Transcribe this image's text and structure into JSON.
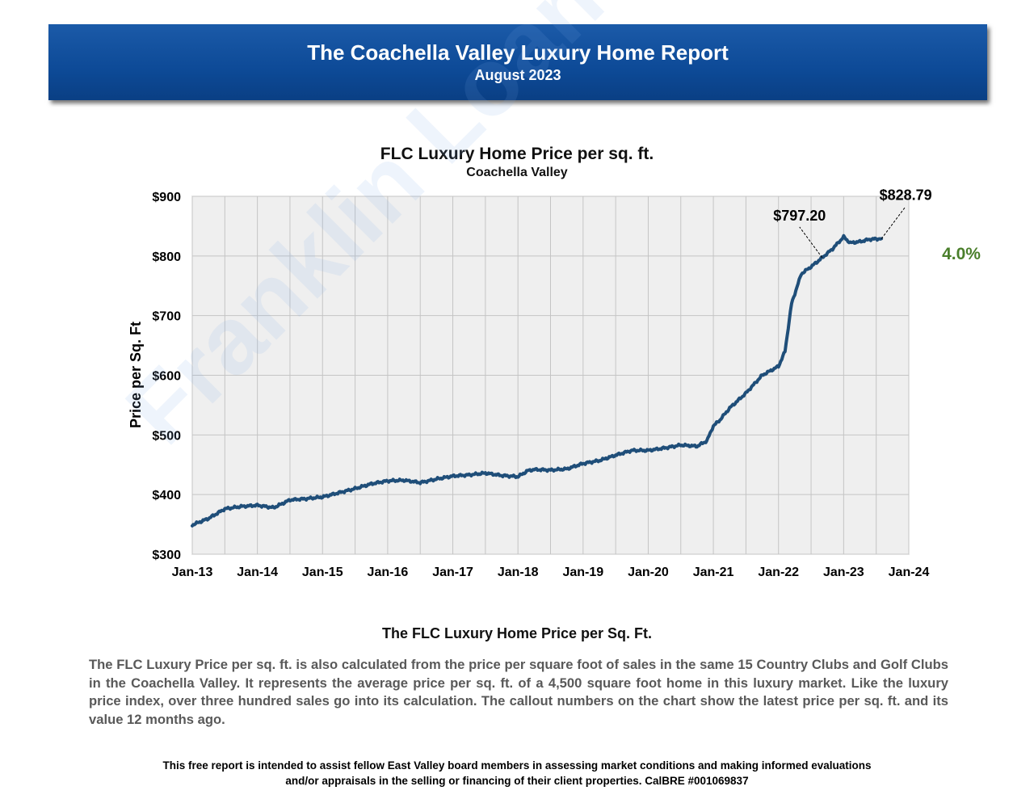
{
  "header": {
    "title": "The Coachella Valley Luxury Home Report",
    "subtitle": "August 2023"
  },
  "watermark": "Franklin Loan Center",
  "chart_data": {
    "type": "line",
    "title": "FLC Luxury Home Price per sq. ft.",
    "subtitle": "Coachella Valley",
    "xlabel": "",
    "ylabel": "Price per Sq. Ft",
    "ylim": [
      300,
      900
    ],
    "yticks": [
      300,
      400,
      500,
      600,
      700,
      800,
      900
    ],
    "ytick_labels": [
      "$300",
      "$400",
      "$500",
      "$600",
      "$700",
      "$800",
      "$900"
    ],
    "xticks": [
      "Jan-13",
      "Jan-14",
      "Jan-15",
      "Jan-16",
      "Jan-17",
      "Jan-18",
      "Jan-19",
      "Jan-20",
      "Jan-21",
      "Jan-22",
      "Jan-23",
      "Jan-24"
    ],
    "grid": true,
    "line_color": "#1f4e79",
    "series": [
      {
        "values_note_x": "year fraction",
        "x": [
          2013.0,
          2013.25,
          2013.5,
          2013.75,
          2014.0,
          2014.25,
          2014.5,
          2014.75,
          2015.0,
          2015.25,
          2015.5,
          2015.75,
          2016.0,
          2016.25,
          2016.5,
          2016.75,
          2017.0,
          2017.25,
          2017.5,
          2017.75,
          2018.0,
          2018.15,
          2018.25,
          2018.5,
          2018.75,
          2019.0,
          2019.25,
          2019.5,
          2019.75,
          2020.0,
          2020.25,
          2020.5,
          2020.75,
          2020.9,
          2021.0,
          2021.1,
          2021.25,
          2021.5,
          2021.75,
          2022.0,
          2022.1,
          2022.2,
          2022.35,
          2022.5,
          2022.67,
          2022.83,
          2023.0,
          2023.1,
          2023.25,
          2023.4,
          2023.58
        ],
        "y": [
          349,
          360,
          376,
          380,
          382,
          378,
          391,
          393,
          396,
          403,
          410,
          418,
          423,
          424,
          420,
          426,
          431,
          433,
          436,
          432,
          430,
          440,
          442,
          441,
          443,
          452,
          457,
          466,
          474,
          474,
          478,
          483,
          481,
          490,
          515,
          525,
          545,
          570,
          600,
          615,
          640,
          720,
          770,
          782,
          797,
          812,
          832,
          822,
          824,
          828,
          829
        ]
      }
    ],
    "callouts": [
      {
        "label": "$797.20",
        "x": 2022.67,
        "y": 797.2
      },
      {
        "label": "$828.79",
        "x": 2023.58,
        "y": 828.79
      }
    ],
    "change_label": "4.0%"
  },
  "section": {
    "title": "The FLC Luxury Home Price per Sq. Ft.",
    "description": "The FLC Luxury Price per sq. ft. is also calculated from the price per square foot of sales in the same 15 Country Clubs and Golf Clubs in the Coachella Valley. It represents the average price per sq. ft. of a 4,500 square foot home in this luxury market. Like the luxury price index, over three hundred sales go into its calculation. The callout numbers on the chart show the latest price per sq. ft. and its value 12 months ago."
  },
  "footer": {
    "line1": "This free report is intended to assist fellow East Valley board members in assessing market conditions and making  informed evaluations",
    "line2": "and/or appraisals in the selling or financing of their client properties. CalBRE #001069837"
  }
}
